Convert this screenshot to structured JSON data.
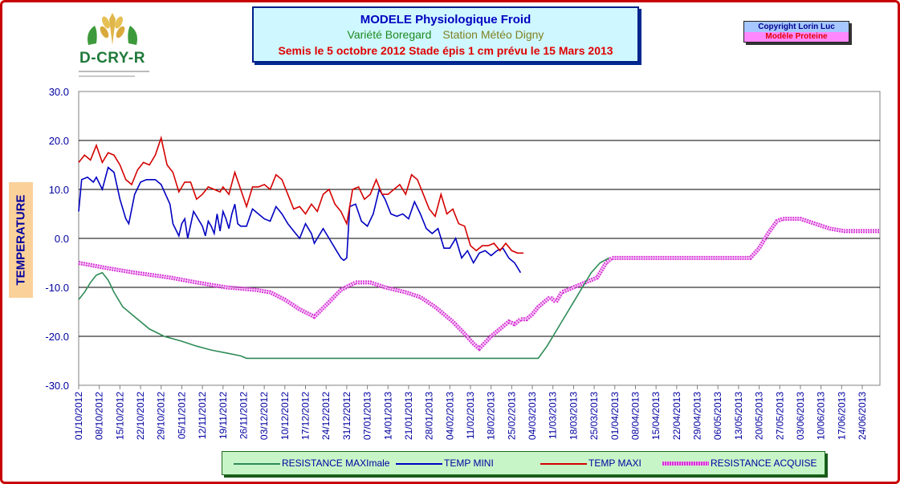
{
  "header": {
    "title": "MODELE Physiologique Froid",
    "variety": "Variété Boregard",
    "station": "Station Météo Digny",
    "sowing": "Semis le 5 octobre 2012 Stade épis 1 cm prévu le 15 Mars 2013"
  },
  "logo": {
    "text": "D-CRY-R"
  },
  "copyright": {
    "line1": "Copyright Lorin Luc",
    "line2": "Modèle Proteine"
  },
  "colors": {
    "resistance_max": "#2e8b57",
    "temp_min": "#0000c0",
    "temp_max": "#d40000",
    "resistance_acquise": "#d632d6"
  },
  "chart_data": {
    "type": "line",
    "ylabel": "TEMPERATURE",
    "ylim": [
      -30,
      30
    ],
    "yticks": [
      "30.0",
      "20.0",
      "10.0",
      "0.0",
      "-10.0",
      "-20.0",
      "-30.0"
    ],
    "xlim": [
      "2012-10-01",
      "2013-06-30"
    ],
    "x_tick_labels": [
      "01/10/2012",
      "08/10/2012",
      "15/10/2012",
      "22/10/2012",
      "29/10/2012",
      "05/11/2012",
      "12/11/2012",
      "19/11/2012",
      "26/11/2012",
      "03/12/2012",
      "10/12/2012",
      "17/12/2012",
      "24/12/2012",
      "31/12/2012",
      "07/01/2013",
      "14/01/2013",
      "21/01/2013",
      "28/01/2013",
      "04/02/2013",
      "11/02/2013",
      "18/02/2013",
      "25/02/2013",
      "04/03/2013",
      "11/03/2013",
      "18/03/2013",
      "25/03/2013",
      "01/04/2013",
      "08/04/2013",
      "15/04/2013",
      "22/04/2013",
      "29/04/2013",
      "06/05/2013",
      "13/05/2013",
      "20/05/2013",
      "27/05/2013",
      "03/06/2013",
      "10/06/2013",
      "17/06/2013",
      "24/06/2013"
    ],
    "grid": true,
    "legend_position": "bottom",
    "series": [
      {
        "name": "RESISTANCE MAXImale",
        "points": [
          [
            "2012-10-01",
            -12.5
          ],
          [
            "2012-10-03",
            -11
          ],
          [
            "2012-10-05",
            -9
          ],
          [
            "2012-10-07",
            -7.5
          ],
          [
            "2012-10-09",
            -7
          ],
          [
            "2012-10-11",
            -8.5
          ],
          [
            "2012-10-13",
            -11
          ],
          [
            "2012-10-16",
            -14
          ],
          [
            "2012-10-20",
            -16
          ],
          [
            "2012-10-25",
            -18.5
          ],
          [
            "2012-10-30",
            -20
          ],
          [
            "2012-11-05",
            -21
          ],
          [
            "2012-11-10",
            -22
          ],
          [
            "2012-11-15",
            -22.8
          ],
          [
            "2012-11-20",
            -23.4
          ],
          [
            "2012-11-25",
            -24
          ],
          [
            "2012-11-27",
            -24.5
          ],
          [
            "2013-01-01",
            -24.5
          ],
          [
            "2013-02-01",
            -24.5
          ],
          [
            "2013-03-06",
            -24.5
          ],
          [
            "2013-03-09",
            -22
          ],
          [
            "2013-03-12",
            -19
          ],
          [
            "2013-03-15",
            -16
          ],
          [
            "2013-03-18",
            -13
          ],
          [
            "2013-03-21",
            -10
          ],
          [
            "2013-03-24",
            -7
          ],
          [
            "2013-03-27",
            -5
          ],
          [
            "2013-03-30",
            -4
          ]
        ]
      },
      {
        "name": "TEMP MINI",
        "points": [
          [
            "2012-10-01",
            5.5
          ],
          [
            "2012-10-02",
            12
          ],
          [
            "2012-10-04",
            12.5
          ],
          [
            "2012-10-06",
            11.5
          ],
          [
            "2012-10-07",
            12.5
          ],
          [
            "2012-10-09",
            10
          ],
          [
            "2012-10-11",
            14.5
          ],
          [
            "2012-10-13",
            13.5
          ],
          [
            "2012-10-15",
            8
          ],
          [
            "2012-10-17",
            4
          ],
          [
            "2012-10-18",
            3
          ],
          [
            "2012-10-20",
            9
          ],
          [
            "2012-10-22",
            11.5
          ],
          [
            "2012-10-24",
            12
          ],
          [
            "2012-10-27",
            12
          ],
          [
            "2012-10-29",
            11
          ],
          [
            "2012-11-01",
            7
          ],
          [
            "2012-11-02",
            3
          ],
          [
            "2012-11-04",
            0.5
          ],
          [
            "2012-11-05",
            3
          ],
          [
            "2012-11-06",
            4
          ],
          [
            "2012-11-07",
            0
          ],
          [
            "2012-11-09",
            5.5
          ],
          [
            "2012-11-10",
            4.5
          ],
          [
            "2012-11-12",
            2.5
          ],
          [
            "2012-11-13",
            0.5
          ],
          [
            "2012-11-14",
            3.5
          ],
          [
            "2012-11-15",
            2.5
          ],
          [
            "2012-11-16",
            1
          ],
          [
            "2012-11-17",
            5
          ],
          [
            "2012-11-18",
            1.5
          ],
          [
            "2012-11-19",
            5.5
          ],
          [
            "2012-11-20",
            4
          ],
          [
            "2012-11-21",
            2
          ],
          [
            "2012-11-22",
            5
          ],
          [
            "2012-11-23",
            7
          ],
          [
            "2012-11-24",
            3
          ],
          [
            "2012-11-25",
            2.5
          ],
          [
            "2012-11-27",
            2.5
          ],
          [
            "2012-11-29",
            6
          ],
          [
            "2012-12-01",
            5
          ],
          [
            "2012-12-03",
            4
          ],
          [
            "2012-12-05",
            3.5
          ],
          [
            "2012-12-07",
            6.5
          ],
          [
            "2012-12-09",
            5
          ],
          [
            "2012-12-11",
            3
          ],
          [
            "2012-12-13",
            1.5
          ],
          [
            "2012-12-15",
            0
          ],
          [
            "2012-12-17",
            3
          ],
          [
            "2012-12-19",
            1
          ],
          [
            "2012-12-20",
            -1
          ],
          [
            "2012-12-21",
            0
          ],
          [
            "2012-12-23",
            2
          ],
          [
            "2012-12-25",
            0
          ],
          [
            "2012-12-27",
            -2
          ],
          [
            "2012-12-29",
            -4
          ],
          [
            "2012-12-30",
            -4.5
          ],
          [
            "2012-12-31",
            -4
          ],
          [
            "2013-01-01",
            6.5
          ],
          [
            "2013-01-03",
            7
          ],
          [
            "2013-01-05",
            3.5
          ],
          [
            "2013-01-07",
            2.5
          ],
          [
            "2013-01-09",
            5
          ],
          [
            "2013-01-11",
            10
          ],
          [
            "2013-01-13",
            8
          ],
          [
            "2013-01-15",
            5
          ],
          [
            "2013-01-17",
            4.5
          ],
          [
            "2013-01-19",
            5
          ],
          [
            "2013-01-21",
            4
          ],
          [
            "2013-01-23",
            7.5
          ],
          [
            "2013-01-25",
            5
          ],
          [
            "2013-01-27",
            2
          ],
          [
            "2013-01-29",
            1
          ],
          [
            "2013-01-31",
            2
          ],
          [
            "2013-02-02",
            -2
          ],
          [
            "2013-02-04",
            -2
          ],
          [
            "2013-02-06",
            0
          ],
          [
            "2013-02-08",
            -4
          ],
          [
            "2013-02-10",
            -2.5
          ],
          [
            "2013-02-12",
            -5
          ],
          [
            "2013-02-14",
            -3
          ],
          [
            "2013-02-16",
            -2.5
          ],
          [
            "2013-02-18",
            -3.5
          ],
          [
            "2013-02-20",
            -2.5
          ],
          [
            "2013-02-22",
            -2
          ],
          [
            "2013-02-24",
            -4
          ],
          [
            "2013-02-26",
            -5
          ],
          [
            "2013-02-28",
            -7
          ]
        ]
      },
      {
        "name": "TEMP MAXI",
        "points": [
          [
            "2012-10-01",
            15.5
          ],
          [
            "2012-10-03",
            17
          ],
          [
            "2012-10-05",
            16
          ],
          [
            "2012-10-07",
            19
          ],
          [
            "2012-10-09",
            15.5
          ],
          [
            "2012-10-11",
            17.5
          ],
          [
            "2012-10-13",
            17
          ],
          [
            "2012-10-15",
            15
          ],
          [
            "2012-10-17",
            12
          ],
          [
            "2012-10-19",
            11
          ],
          [
            "2012-10-21",
            14
          ],
          [
            "2012-10-23",
            15.5
          ],
          [
            "2012-10-25",
            15
          ],
          [
            "2012-10-27",
            17
          ],
          [
            "2012-10-29",
            20.5
          ],
          [
            "2012-10-31",
            15
          ],
          [
            "2012-11-02",
            13.5
          ],
          [
            "2012-11-04",
            9.5
          ],
          [
            "2012-11-06",
            11.5
          ],
          [
            "2012-11-08",
            11.5
          ],
          [
            "2012-11-10",
            8
          ],
          [
            "2012-11-12",
            9
          ],
          [
            "2012-11-14",
            10.5
          ],
          [
            "2012-11-16",
            10
          ],
          [
            "2012-11-18",
            9.5
          ],
          [
            "2012-11-19",
            10.5
          ],
          [
            "2012-11-21",
            9
          ],
          [
            "2012-11-23",
            13.5
          ],
          [
            "2012-11-25",
            10
          ],
          [
            "2012-11-27",
            6.5
          ],
          [
            "2012-11-29",
            10.5
          ],
          [
            "2012-12-01",
            10.5
          ],
          [
            "2012-12-03",
            11
          ],
          [
            "2012-12-05",
            10
          ],
          [
            "2012-12-07",
            13
          ],
          [
            "2012-12-09",
            12
          ],
          [
            "2012-12-11",
            9
          ],
          [
            "2012-12-13",
            6
          ],
          [
            "2012-12-15",
            6.5
          ],
          [
            "2012-12-17",
            5
          ],
          [
            "2012-12-19",
            7
          ],
          [
            "2012-12-21",
            5.5
          ],
          [
            "2012-12-23",
            9
          ],
          [
            "2012-12-25",
            10
          ],
          [
            "2012-12-27",
            7
          ],
          [
            "2012-12-29",
            5.5
          ],
          [
            "2012-12-31",
            3
          ],
          [
            "2013-01-02",
            10
          ],
          [
            "2013-01-04",
            10.5
          ],
          [
            "2013-01-06",
            8
          ],
          [
            "2013-01-08",
            9
          ],
          [
            "2013-01-10",
            12
          ],
          [
            "2013-01-12",
            9
          ],
          [
            "2013-01-14",
            9
          ],
          [
            "2013-01-16",
            10
          ],
          [
            "2013-01-18",
            11
          ],
          [
            "2013-01-20",
            9
          ],
          [
            "2013-01-22",
            13
          ],
          [
            "2013-01-24",
            12
          ],
          [
            "2013-01-26",
            9
          ],
          [
            "2013-01-28",
            6
          ],
          [
            "2013-01-30",
            4.5
          ],
          [
            "2013-02-01",
            9
          ],
          [
            "2013-02-03",
            5
          ],
          [
            "2013-02-05",
            6
          ],
          [
            "2013-02-07",
            3
          ],
          [
            "2013-02-09",
            2.5
          ],
          [
            "2013-02-11",
            -1.5
          ],
          [
            "2013-02-13",
            -2.5
          ],
          [
            "2013-02-15",
            -1.5
          ],
          [
            "2013-02-17",
            -1.5
          ],
          [
            "2013-02-19",
            -1
          ],
          [
            "2013-02-21",
            -2.5
          ],
          [
            "2013-02-23",
            -1
          ],
          [
            "2013-02-25",
            -2.5
          ],
          [
            "2013-02-27",
            -3
          ],
          [
            "2013-03-01",
            -3
          ]
        ]
      },
      {
        "name": "RESISTANCE ACQUISE",
        "points": [
          [
            "2012-10-01",
            -5
          ],
          [
            "2012-10-10",
            -6
          ],
          [
            "2012-10-20",
            -7
          ],
          [
            "2012-11-01",
            -8
          ],
          [
            "2012-11-10",
            -9
          ],
          [
            "2012-11-20",
            -10
          ],
          [
            "2012-11-30",
            -10.5
          ],
          [
            "2012-12-05",
            -11
          ],
          [
            "2012-12-10",
            -12.5
          ],
          [
            "2012-12-15",
            -14.5
          ],
          [
            "2012-12-20",
            -16
          ],
          [
            "2012-12-25",
            -13
          ],
          [
            "2012-12-29",
            -10.5
          ],
          [
            "2013-01-03",
            -9
          ],
          [
            "2013-01-08",
            -9
          ],
          [
            "2013-01-13",
            -10
          ],
          [
            "2013-01-20",
            -11
          ],
          [
            "2013-01-25",
            -12
          ],
          [
            "2013-01-30",
            -14
          ],
          [
            "2013-02-05",
            -17
          ],
          [
            "2013-02-09",
            -19.5
          ],
          [
            "2013-02-12",
            -21.5
          ],
          [
            "2013-02-14",
            -22.5
          ],
          [
            "2013-02-18",
            -20
          ],
          [
            "2013-02-22",
            -18
          ],
          [
            "2013-02-24",
            -17
          ],
          [
            "2013-02-26",
            -17.5
          ],
          [
            "2013-02-28",
            -16.5
          ],
          [
            "2013-03-02",
            -16.5
          ],
          [
            "2013-03-04",
            -15.5
          ],
          [
            "2013-03-06",
            -14
          ],
          [
            "2013-03-08",
            -13
          ],
          [
            "2013-03-10",
            -12
          ],
          [
            "2013-03-12",
            -13
          ],
          [
            "2013-03-14",
            -11
          ],
          [
            "2013-03-18",
            -10
          ],
          [
            "2013-03-22",
            -9
          ],
          [
            "2013-03-26",
            -8
          ],
          [
            "2013-03-29",
            -5
          ],
          [
            "2013-03-31",
            -4
          ],
          [
            "2013-04-05",
            -4
          ],
          [
            "2013-04-20",
            -4
          ],
          [
            "2013-05-05",
            -4
          ],
          [
            "2013-05-17",
            -4
          ],
          [
            "2013-05-20",
            -2
          ],
          [
            "2013-05-23",
            1
          ],
          [
            "2013-05-26",
            3.5
          ],
          [
            "2013-05-28",
            4
          ],
          [
            "2013-06-03",
            4
          ],
          [
            "2013-06-08",
            3
          ],
          [
            "2013-06-13",
            2
          ],
          [
            "2013-06-18",
            1.5
          ],
          [
            "2013-06-25",
            1.5
          ],
          [
            "2013-06-30",
            1.5
          ]
        ]
      }
    ]
  }
}
